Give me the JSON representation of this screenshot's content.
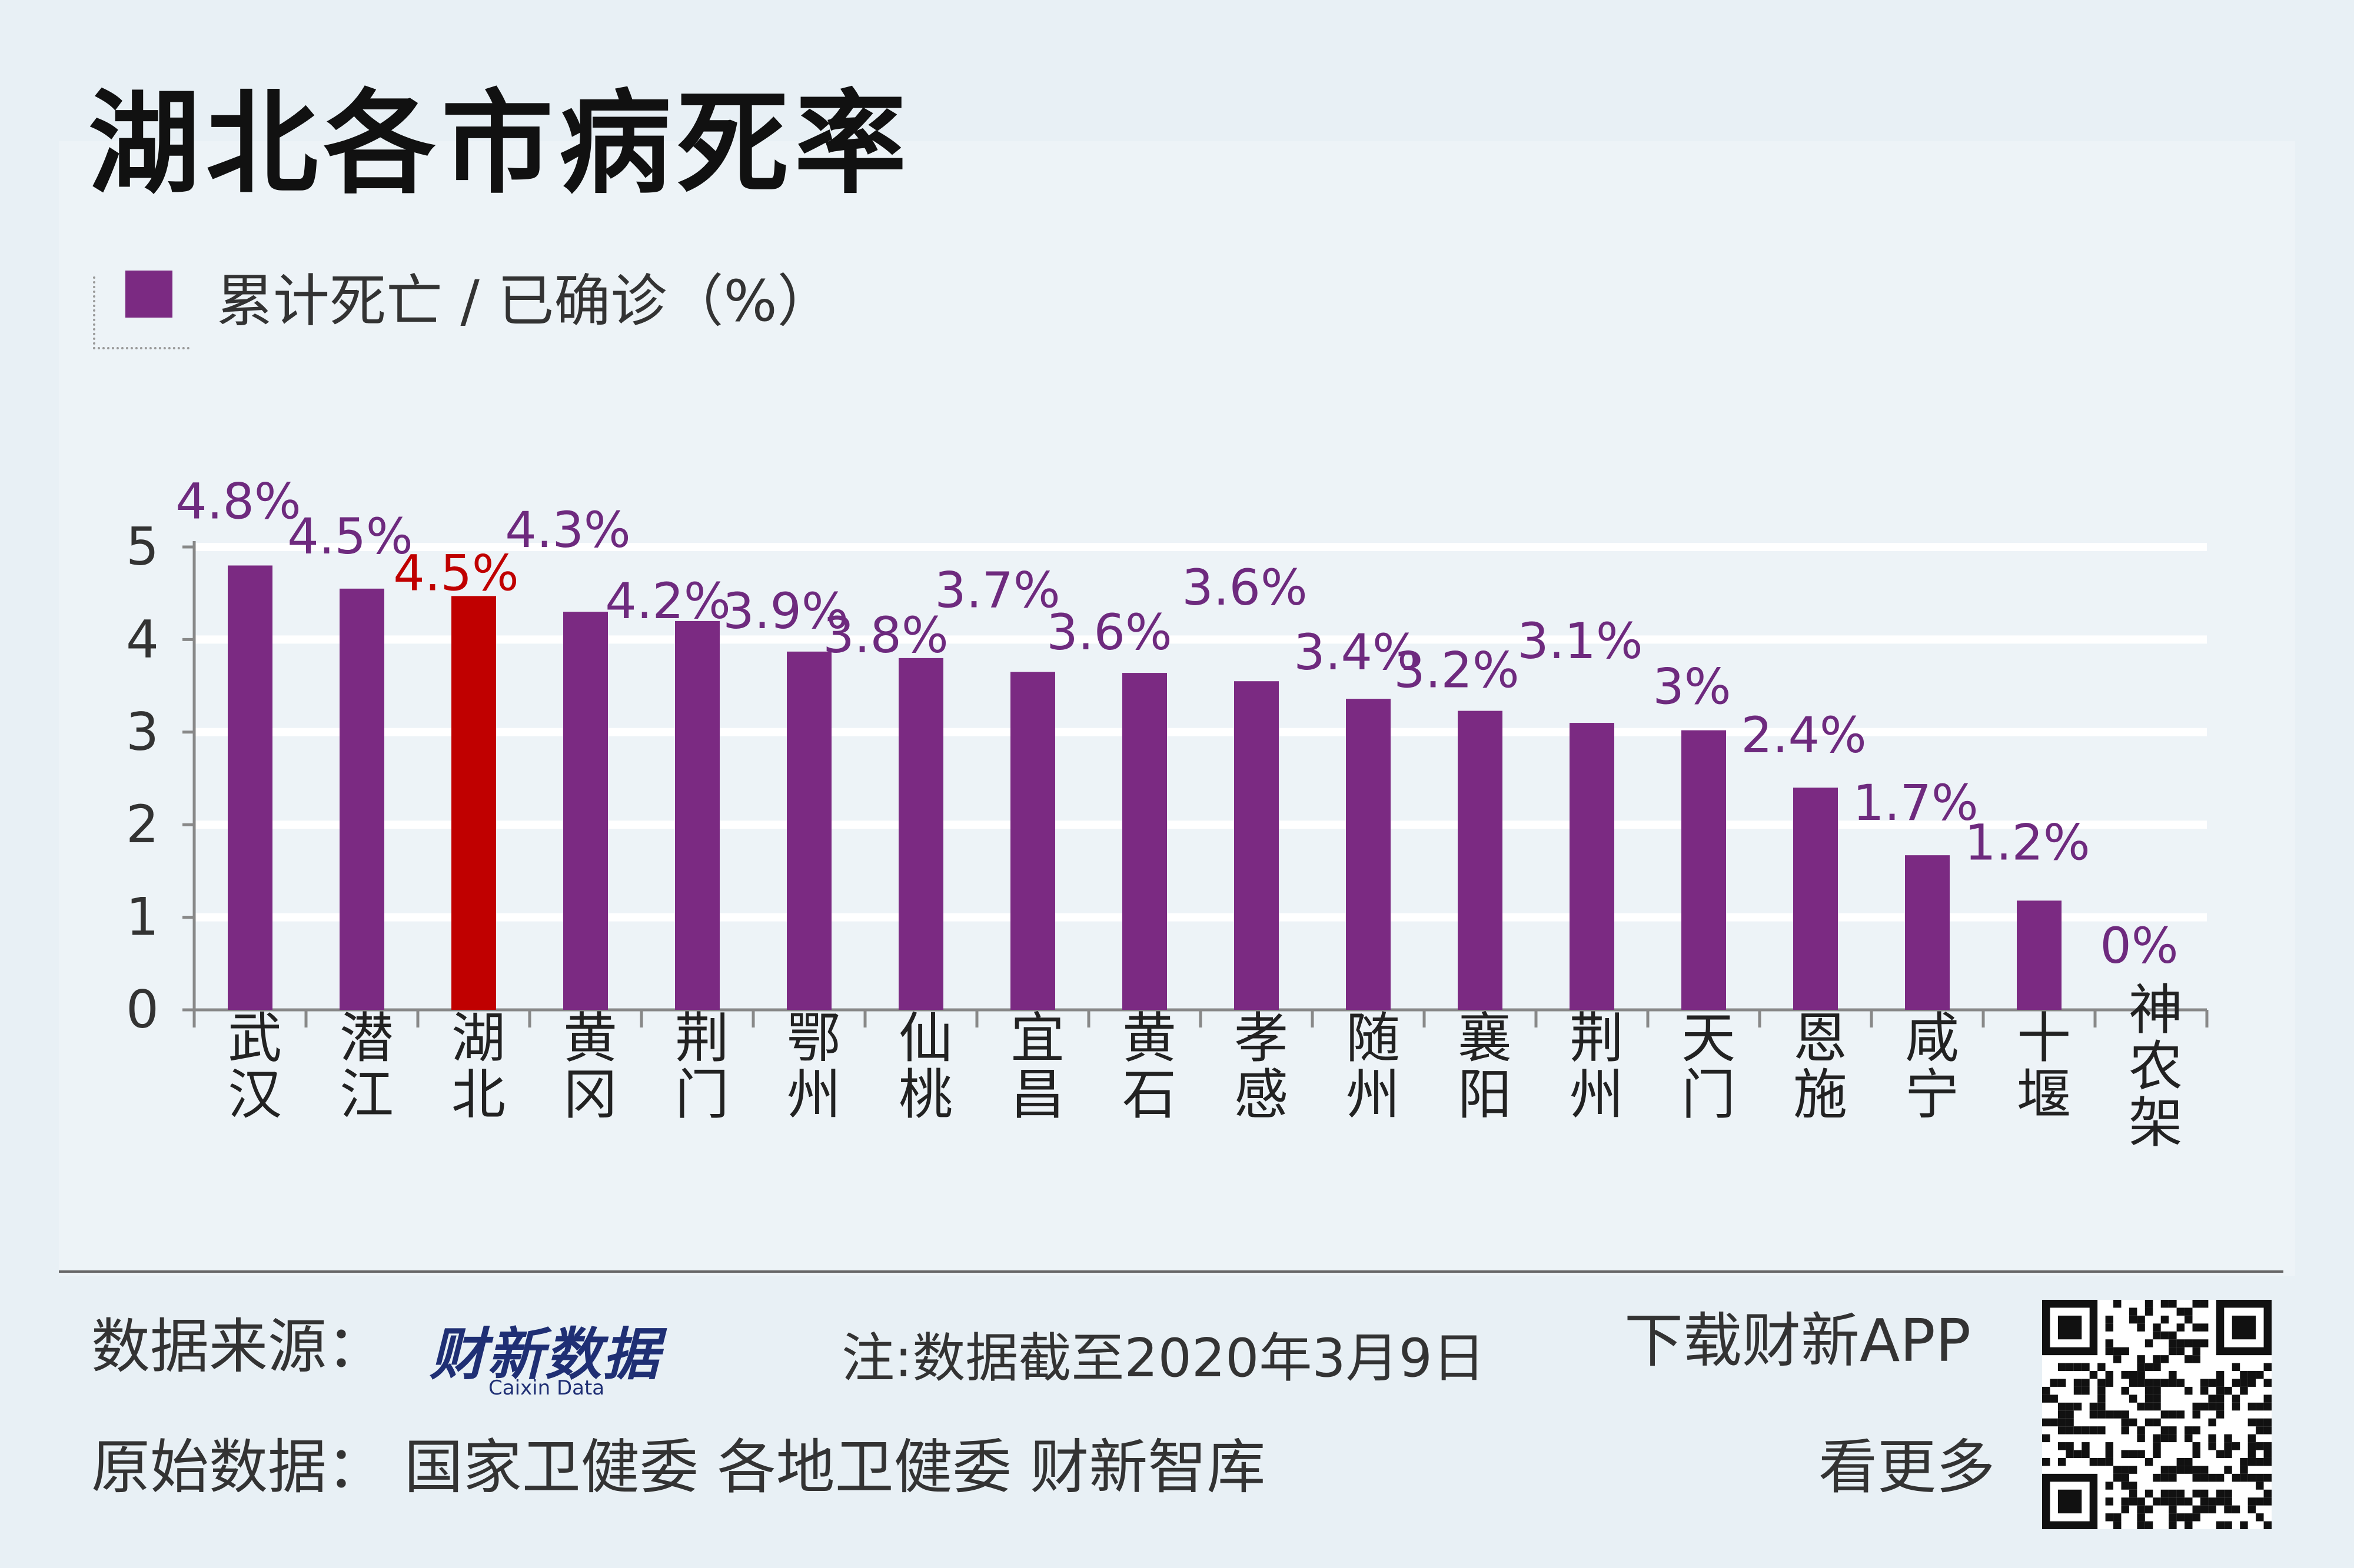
{
  "title": "湖北各市病死率",
  "legend_label": "累计死亡 / 已确诊（%）",
  "chart_data": {
    "type": "bar",
    "title": "湖北各市病死率",
    "categories": [
      "武汉",
      "潜江",
      "湖北",
      "黄冈",
      "荆门",
      "鄂州",
      "仙桃",
      "宜昌",
      "黄石",
      "孝感",
      "随州",
      "襄阳",
      "荆州",
      "天门",
      "恩施",
      "咸宁",
      "十堰",
      "神农架"
    ],
    "values": [
      4.8,
      4.55,
      4.47,
      4.3,
      4.2,
      3.87,
      3.8,
      3.65,
      3.64,
      3.55,
      3.36,
      3.23,
      3.1,
      3.02,
      2.4,
      1.67,
      1.18,
      0
    ],
    "value_labels": [
      "4.8%",
      "4.5%",
      "4.5%",
      "4.3%",
      "4.2%",
      "3.9%",
      "3.8%",
      "3.7%",
      "3.6%",
      "3.6%",
      "3.4%",
      "3.2%",
      "3.1%",
      "3%",
      "2.4%",
      "1.7%",
      "1.2%",
      "0%"
    ],
    "series_name": "累计死亡 / 已确诊（%）",
    "highlight_index": 2,
    "ylim": [
      0,
      5
    ],
    "yticks": [
      0,
      1,
      2,
      3,
      4,
      5
    ],
    "grid": true,
    "xlabel": "",
    "ylabel": "",
    "colors": {
      "bar": "#7b2a82",
      "highlight": "#c00000",
      "label": "#6e2a7e",
      "highlight_label": "#c00000",
      "grid": "#ffffff",
      "axis": "#888888"
    }
  },
  "footer": {
    "source_label": "数据来源：",
    "logo_text": "财新数据",
    "logo_subtext": "Caixin Data",
    "note": "注:数据截至2020年3月9日",
    "download": "下载财新APP",
    "see_more": "看更多",
    "raw_data": "原始数据：  国家卫健委  各地卫健委  财新智库"
  }
}
